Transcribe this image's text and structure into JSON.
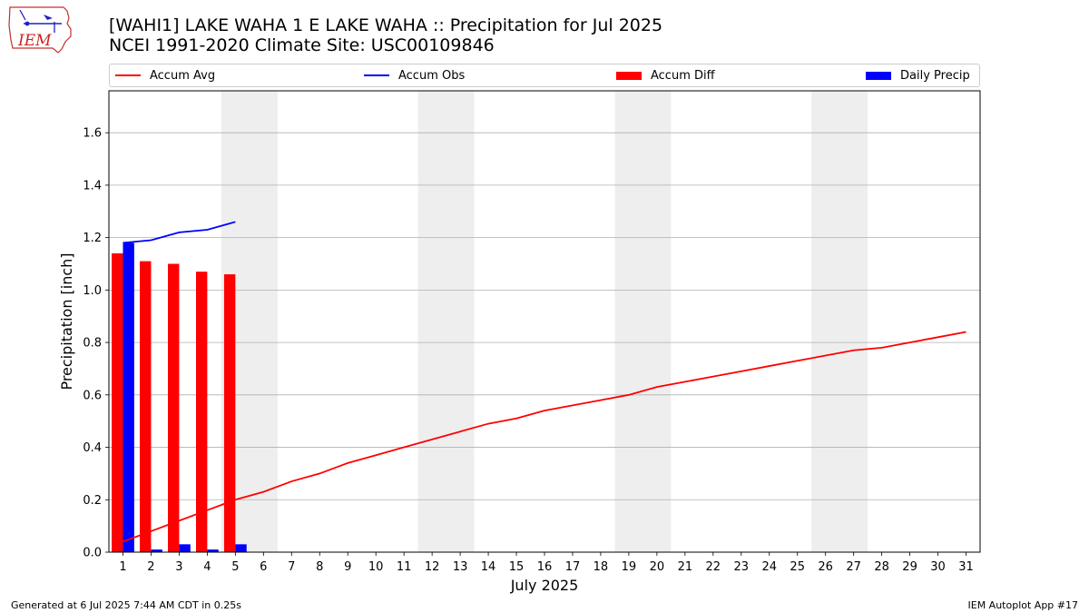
{
  "title_line1": "[WAHI1] LAKE WAHA 1 E LAKE WAHA :: Precipitation for Jul 2025",
  "title_line2": "NCEI 1991-2020 Climate Site: USC00109846",
  "logo_text": "IEM",
  "footer_left": "Generated at 6 Jul 2025 7:44 AM CDT in 0.25s",
  "footer_right": "IEM Autoplot App #17",
  "colors": {
    "accum_avg": "#ff0000",
    "accum_obs": "#0000ff",
    "accum_diff": "#ff0000",
    "daily_precip": "#0000ff",
    "weekend_shade": "#eeeeee",
    "grid": "#b0b0b0"
  },
  "legend": [
    {
      "label": "Accum Avg",
      "kind": "line",
      "color": "#ff0000"
    },
    {
      "label": "Accum Obs",
      "kind": "line",
      "color": "#0000ff"
    },
    {
      "label": "Accum Diff",
      "kind": "bar",
      "color": "#ff0000"
    },
    {
      "label": "Daily Precip",
      "kind": "bar",
      "color": "#0000ff"
    }
  ],
  "chart_data": {
    "type": "bar",
    "xlabel": "July 2025",
    "ylabel": "Precipitation [inch]",
    "xlim": [
      0.5,
      31.5
    ],
    "ylim": [
      0,
      1.76
    ],
    "yticks": [
      0.0,
      0.2,
      0.4,
      0.6,
      0.8,
      1.0,
      1.2,
      1.4,
      1.6
    ],
    "ytick_labels": [
      "0.0",
      "0.2",
      "0.4",
      "0.6",
      "0.8",
      "1.0",
      "1.2",
      "1.4",
      "1.6"
    ],
    "x": [
      1,
      2,
      3,
      4,
      5,
      6,
      7,
      8,
      9,
      10,
      11,
      12,
      13,
      14,
      15,
      16,
      17,
      18,
      19,
      20,
      21,
      22,
      23,
      24,
      25,
      26,
      27,
      28,
      29,
      30,
      31
    ],
    "grid": "horizontal",
    "legend_position": "top",
    "weekend_shading": [
      [
        5,
        6
      ],
      [
        12,
        13
      ],
      [
        19,
        20
      ],
      [
        26,
        27
      ]
    ],
    "series": [
      {
        "name": "Accum Avg",
        "type": "line",
        "color": "#ff0000",
        "x": [
          1,
          2,
          3,
          4,
          5,
          6,
          7,
          8,
          9,
          10,
          11,
          12,
          13,
          14,
          15,
          16,
          17,
          18,
          19,
          20,
          21,
          22,
          23,
          24,
          25,
          26,
          27,
          28,
          29,
          30,
          31
        ],
        "values": [
          0.04,
          0.08,
          0.12,
          0.16,
          0.2,
          0.23,
          0.27,
          0.3,
          0.34,
          0.37,
          0.4,
          0.43,
          0.46,
          0.49,
          0.51,
          0.54,
          0.56,
          0.58,
          0.6,
          0.63,
          0.65,
          0.67,
          0.69,
          0.71,
          0.73,
          0.75,
          0.77,
          0.78,
          0.8,
          0.82,
          0.84
        ]
      },
      {
        "name": "Accum Obs",
        "type": "line",
        "color": "#0000ff",
        "x": [
          1,
          2,
          3,
          4,
          5
        ],
        "values": [
          1.18,
          1.19,
          1.22,
          1.23,
          1.26
        ]
      },
      {
        "name": "Accum Diff",
        "type": "bar",
        "color": "#ff0000",
        "x": [
          1,
          2,
          3,
          4,
          5
        ],
        "values": [
          1.14,
          1.11,
          1.1,
          1.07,
          1.06
        ]
      },
      {
        "name": "Daily Precip",
        "type": "bar",
        "color": "#0000ff",
        "x": [
          1,
          2,
          3,
          4,
          5
        ],
        "values": [
          1.18,
          0.01,
          0.03,
          0.01,
          0.03
        ]
      }
    ]
  }
}
